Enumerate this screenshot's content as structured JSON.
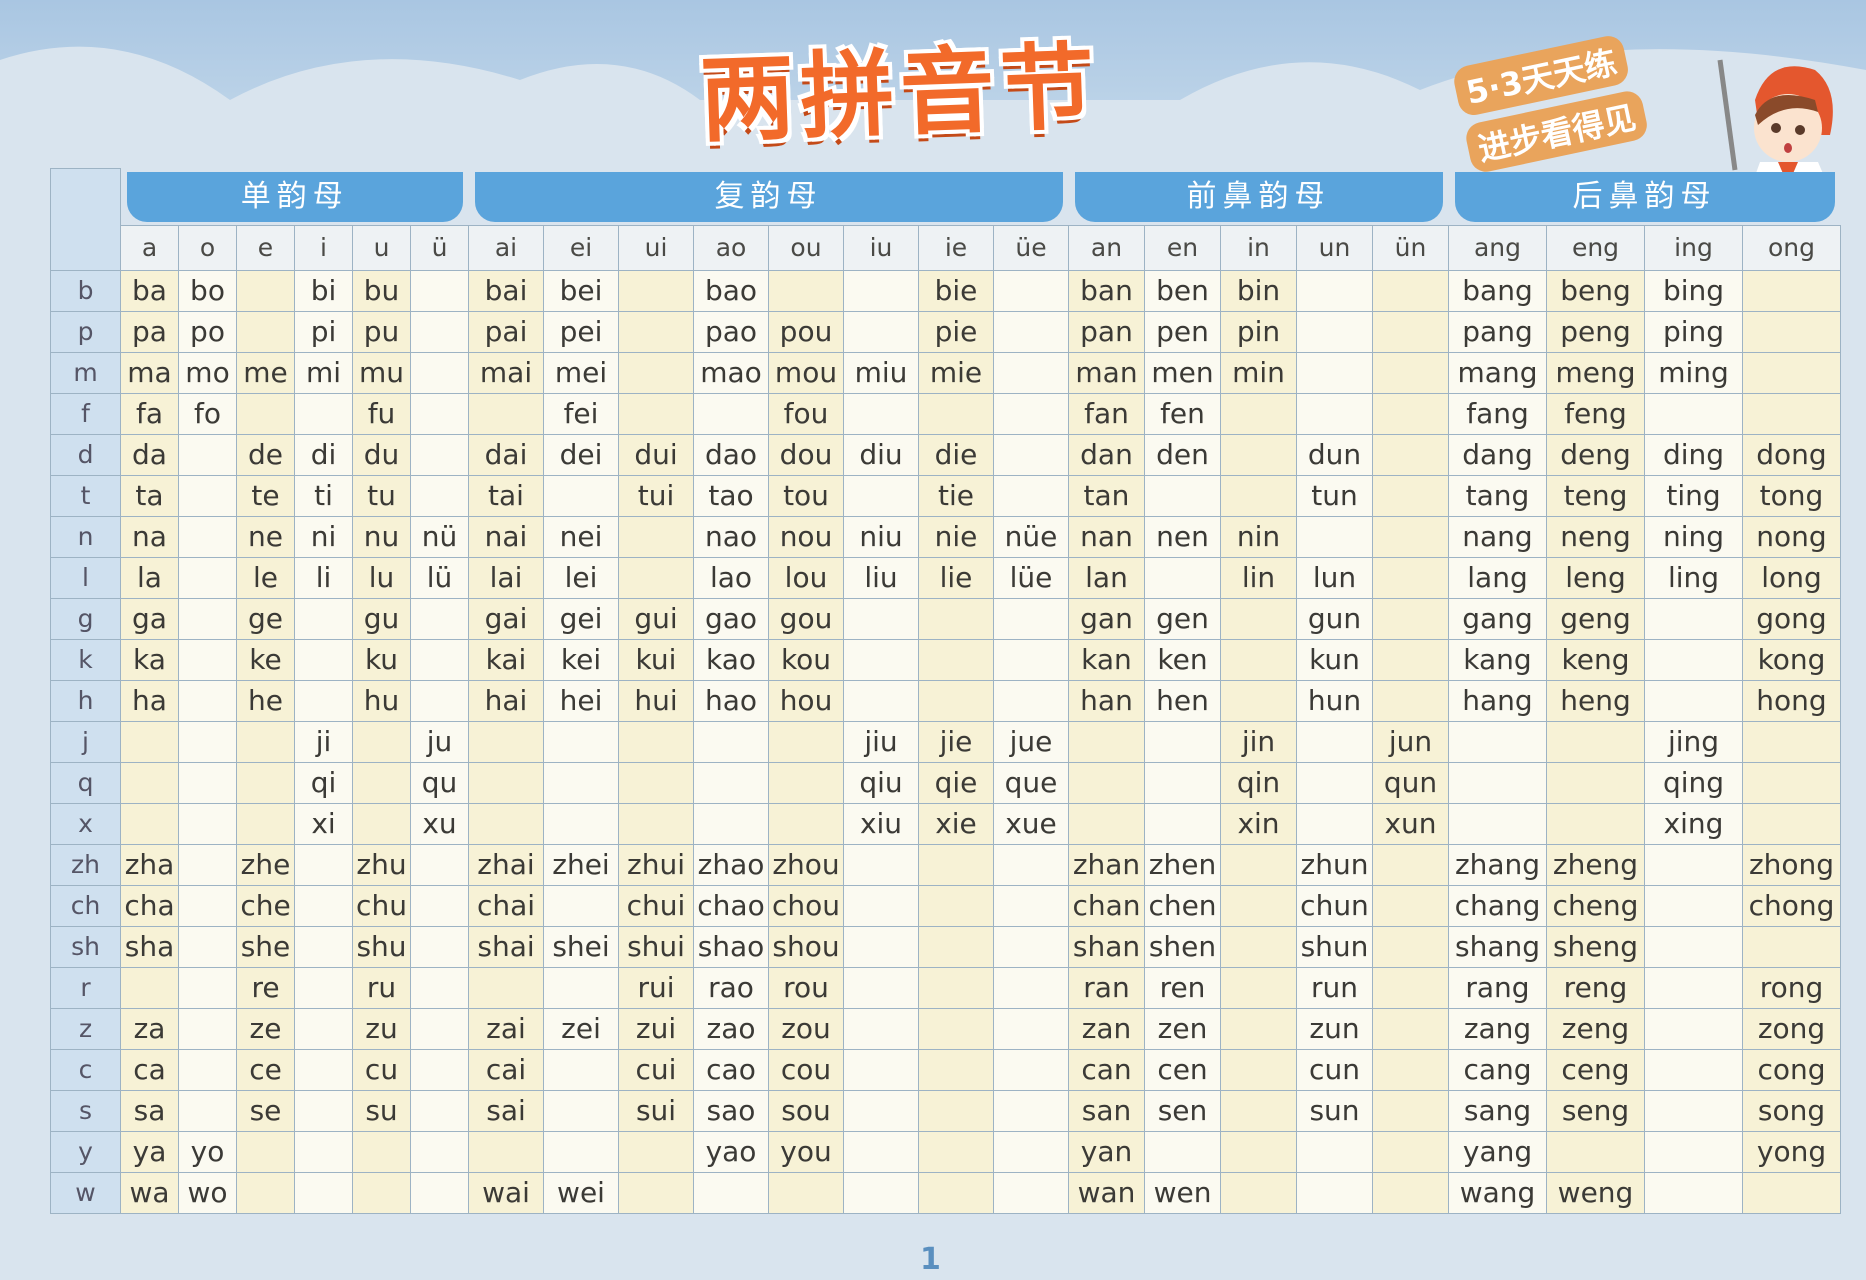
{
  "title": "两拼音节",
  "slogan": [
    "5·3天天练",
    "进步看得见"
  ],
  "page_number": "1",
  "colors": {
    "header_blue": "#5aa4dc",
    "title_orange": "#f26a2a",
    "cell_cream": "#f7f2d6",
    "initial_blue": "#cfe0ef"
  },
  "table": {
    "groups": [
      {
        "label": "单韵母",
        "finals": [
          "a",
          "o",
          "e",
          "i",
          "u",
          "ü"
        ]
      },
      {
        "label": "复韵母",
        "finals": [
          "ai",
          "ei",
          "ui",
          "ao",
          "ou",
          "iu",
          "ie",
          "üe"
        ]
      },
      {
        "label": "前鼻韵母",
        "finals": [
          "an",
          "en",
          "in",
          "un",
          "ün"
        ]
      },
      {
        "label": "后鼻韵母",
        "finals": [
          "ang",
          "eng",
          "ing",
          "ong"
        ]
      }
    ],
    "rows": [
      {
        "initial": "b",
        "cells": [
          "ba",
          "bo",
          "",
          "bi",
          "bu",
          "",
          "bai",
          "bei",
          "",
          "bao",
          "",
          "",
          "bie",
          "",
          "ban",
          "ben",
          "bin",
          "",
          "",
          "bang",
          "beng",
          "bing",
          ""
        ]
      },
      {
        "initial": "p",
        "cells": [
          "pa",
          "po",
          "",
          "pi",
          "pu",
          "",
          "pai",
          "pei",
          "",
          "pao",
          "pou",
          "",
          "pie",
          "",
          "pan",
          "pen",
          "pin",
          "",
          "",
          "pang",
          "peng",
          "ping",
          ""
        ]
      },
      {
        "initial": "m",
        "cells": [
          "ma",
          "mo",
          "me",
          "mi",
          "mu",
          "",
          "mai",
          "mei",
          "",
          "mao",
          "mou",
          "miu",
          "mie",
          "",
          "man",
          "men",
          "min",
          "",
          "",
          "mang",
          "meng",
          "ming",
          ""
        ]
      },
      {
        "initial": "f",
        "cells": [
          "fa",
          "fo",
          "",
          "",
          "fu",
          "",
          "",
          "fei",
          "",
          "",
          "fou",
          "",
          "",
          "",
          "fan",
          "fen",
          "",
          "",
          "",
          "fang",
          "feng",
          "",
          ""
        ]
      },
      {
        "initial": "d",
        "cells": [
          "da",
          "",
          "de",
          "di",
          "du",
          "",
          "dai",
          "dei",
          "dui",
          "dao",
          "dou",
          "diu",
          "die",
          "",
          "dan",
          "den",
          "",
          "dun",
          "",
          "dang",
          "deng",
          "ding",
          "dong"
        ]
      },
      {
        "initial": "t",
        "cells": [
          "ta",
          "",
          "te",
          "ti",
          "tu",
          "",
          "tai",
          "",
          "tui",
          "tao",
          "tou",
          "",
          "tie",
          "",
          "tan",
          "",
          "",
          "tun",
          "",
          "tang",
          "teng",
          "ting",
          "tong"
        ]
      },
      {
        "initial": "n",
        "cells": [
          "na",
          "",
          "ne",
          "ni",
          "nu",
          "nü",
          "nai",
          "nei",
          "",
          "nao",
          "nou",
          "niu",
          "nie",
          "nüe",
          "nan",
          "nen",
          "nin",
          "",
          "",
          "nang",
          "neng",
          "ning",
          "nong"
        ]
      },
      {
        "initial": "l",
        "cells": [
          "la",
          "",
          "le",
          "li",
          "lu",
          "lü",
          "lai",
          "lei",
          "",
          "lao",
          "lou",
          "liu",
          "lie",
          "lüe",
          "lan",
          "",
          "lin",
          "lun",
          "",
          "lang",
          "leng",
          "ling",
          "long"
        ]
      },
      {
        "initial": "g",
        "cells": [
          "ga",
          "",
          "ge",
          "",
          "gu",
          "",
          "gai",
          "gei",
          "gui",
          "gao",
          "gou",
          "",
          "",
          "",
          "gan",
          "gen",
          "",
          "gun",
          "",
          "gang",
          "geng",
          "",
          "gong"
        ]
      },
      {
        "initial": "k",
        "cells": [
          "ka",
          "",
          "ke",
          "",
          "ku",
          "",
          "kai",
          "kei",
          "kui",
          "kao",
          "kou",
          "",
          "",
          "",
          "kan",
          "ken",
          "",
          "kun",
          "",
          "kang",
          "keng",
          "",
          "kong"
        ]
      },
      {
        "initial": "h",
        "cells": [
          "ha",
          "",
          "he",
          "",
          "hu",
          "",
          "hai",
          "hei",
          "hui",
          "hao",
          "hou",
          "",
          "",
          "",
          "han",
          "hen",
          "",
          "hun",
          "",
          "hang",
          "heng",
          "",
          "hong"
        ]
      },
      {
        "initial": "j",
        "cells": [
          "",
          "",
          "",
          "ji",
          "",
          "ju",
          "",
          "",
          "",
          "",
          "",
          "jiu",
          "jie",
          "jue",
          "",
          "",
          "jin",
          "",
          "jun",
          "",
          "",
          "jing",
          ""
        ]
      },
      {
        "initial": "q",
        "cells": [
          "",
          "",
          "",
          "qi",
          "",
          "qu",
          "",
          "",
          "",
          "",
          "",
          "qiu",
          "qie",
          "que",
          "",
          "",
          "qin",
          "",
          "qun",
          "",
          "",
          "qing",
          ""
        ]
      },
      {
        "initial": "x",
        "cells": [
          "",
          "",
          "",
          "xi",
          "",
          "xu",
          "",
          "",
          "",
          "",
          "",
          "xiu",
          "xie",
          "xue",
          "",
          "",
          "xin",
          "",
          "xun",
          "",
          "",
          "xing",
          ""
        ]
      },
      {
        "initial": "zh",
        "cells": [
          "zha",
          "",
          "zhe",
          "",
          "zhu",
          "",
          "zhai",
          "zhei",
          "zhui",
          "zhao",
          "zhou",
          "",
          "",
          "",
          "zhan",
          "zhen",
          "",
          "zhun",
          "",
          "zhang",
          "zheng",
          "",
          "zhong"
        ]
      },
      {
        "initial": "ch",
        "cells": [
          "cha",
          "",
          "che",
          "",
          "chu",
          "",
          "chai",
          "",
          "chui",
          "chao",
          "chou",
          "",
          "",
          "",
          "chan",
          "chen",
          "",
          "chun",
          "",
          "chang",
          "cheng",
          "",
          "chong"
        ]
      },
      {
        "initial": "sh",
        "cells": [
          "sha",
          "",
          "she",
          "",
          "shu",
          "",
          "shai",
          "shei",
          "shui",
          "shao",
          "shou",
          "",
          "",
          "",
          "shan",
          "shen",
          "",
          "shun",
          "",
          "shang",
          "sheng",
          "",
          ""
        ]
      },
      {
        "initial": "r",
        "cells": [
          "",
          "",
          "re",
          "",
          "ru",
          "",
          "",
          "",
          "rui",
          "rao",
          "rou",
          "",
          "",
          "",
          "ran",
          "ren",
          "",
          "run",
          "",
          "rang",
          "reng",
          "",
          "rong"
        ]
      },
      {
        "initial": "z",
        "cells": [
          "za",
          "",
          "ze",
          "",
          "zu",
          "",
          "zai",
          "zei",
          "zui",
          "zao",
          "zou",
          "",
          "",
          "",
          "zan",
          "zen",
          "",
          "zun",
          "",
          "zang",
          "zeng",
          "",
          "zong"
        ]
      },
      {
        "initial": "c",
        "cells": [
          "ca",
          "",
          "ce",
          "",
          "cu",
          "",
          "cai",
          "",
          "cui",
          "cao",
          "cou",
          "",
          "",
          "",
          "can",
          "cen",
          "",
          "cun",
          "",
          "cang",
          "ceng",
          "",
          "cong"
        ]
      },
      {
        "initial": "s",
        "cells": [
          "sa",
          "",
          "se",
          "",
          "su",
          "",
          "sai",
          "",
          "sui",
          "sao",
          "sou",
          "",
          "",
          "",
          "san",
          "sen",
          "",
          "sun",
          "",
          "sang",
          "seng",
          "",
          "song"
        ]
      },
      {
        "initial": "y",
        "cells": [
          "ya",
          "yo",
          "",
          "",
          "",
          "",
          "",
          "",
          "",
          "yao",
          "you",
          "",
          "",
          "",
          "yan",
          "",
          "",
          "",
          "",
          "yang",
          "",
          "",
          "yong"
        ]
      },
      {
        "initial": "w",
        "cells": [
          "wa",
          "wo",
          "",
          "",
          "",
          "",
          "wai",
          "wei",
          "",
          "",
          "",
          "",
          "",
          "",
          "wan",
          "wen",
          "",
          "",
          "",
          "wang",
          "weng",
          "",
          ""
        ]
      }
    ]
  }
}
